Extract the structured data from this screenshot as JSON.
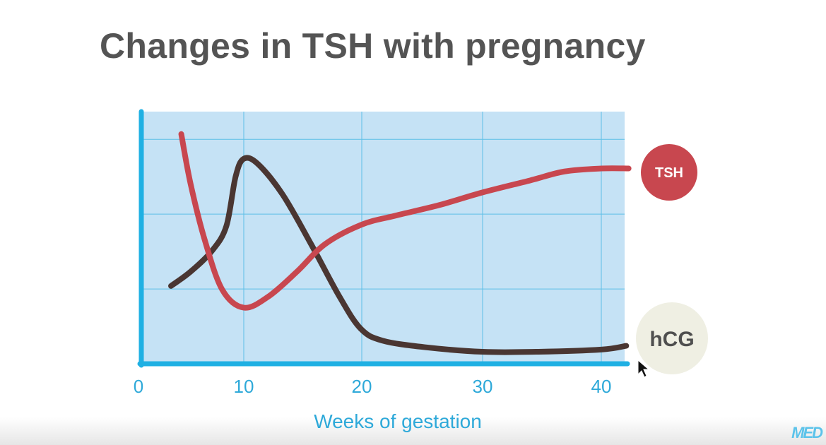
{
  "title": "Changes in TSH with pregnancy",
  "logo_text": "MED",
  "chart_data": {
    "type": "line",
    "title": "Changes in TSH with pregnancy",
    "xlabel": "Weeks of gestation",
    "ylabel": "",
    "xticks": [
      0,
      10,
      20,
      30,
      40
    ],
    "xlim": [
      0,
      42
    ],
    "ylim": [
      0,
      3.37
    ],
    "yticks_unlabeled": [
      1,
      2,
      3
    ],
    "grid": true,
    "background_color": "#c5e2f5",
    "axis_color": "#1fb0e3",
    "legend": "right, circular labels at line ends",
    "series": [
      {
        "name": "TSH",
        "color": "#c8474f",
        "label_bg": "#c8474f",
        "label_color": "#ffffff",
        "x": [
          3.9,
          4.8,
          6.2,
          7.9,
          10,
          12.1,
          14.5,
          16.9,
          20,
          22.8,
          26.4,
          30,
          34,
          36.9,
          40,
          42.3
        ],
        "y": [
          3.07,
          2.41,
          1.65,
          0.99,
          0.75,
          0.9,
          1.23,
          1.6,
          1.86,
          1.98,
          2.12,
          2.29,
          2.45,
          2.57,
          2.61,
          2.61
        ]
      },
      {
        "name": "hCG",
        "color": "#4a3632",
        "label_bg": "#efefe3",
        "label_color": "#4f4f4f",
        "x": [
          2.9,
          4.8,
          6.9,
          8.3,
          9.2,
          10,
          11.2,
          13.3,
          15.7,
          18.1,
          19.9,
          21.7,
          25.3,
          30,
          34.5,
          40,
          42.1
        ],
        "y": [
          1.04,
          1.23,
          1.51,
          1.84,
          2.5,
          2.74,
          2.67,
          2.26,
          1.6,
          0.9,
          0.47,
          0.31,
          0.22,
          0.16,
          0.16,
          0.19,
          0.24
        ]
      }
    ]
  }
}
